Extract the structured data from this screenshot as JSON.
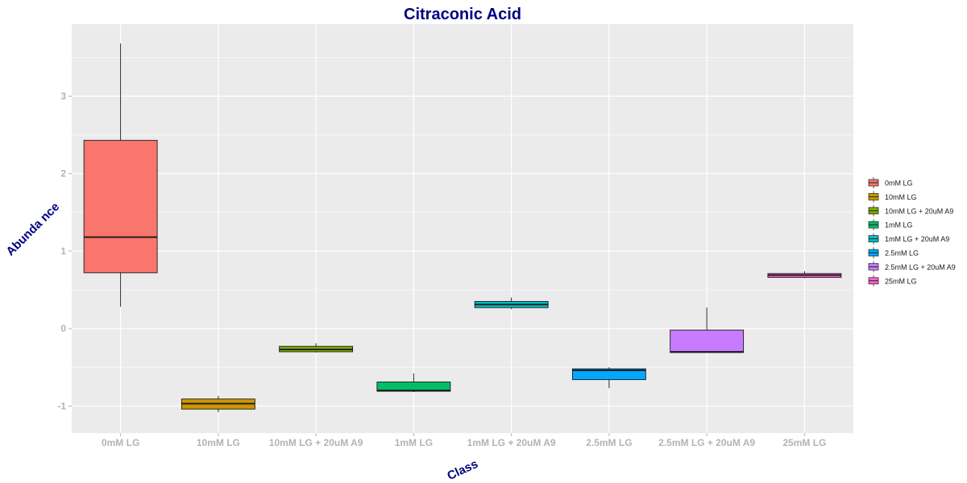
{
  "chart_data": {
    "type": "boxplot",
    "title": "Citraconic Acid",
    "xlabel": "Class",
    "ylabel": "Abunda nce",
    "categories": [
      "0mM LG",
      "10mM LG",
      "10mM LG + 20uM A9",
      "1mM LG",
      "1mM LG + 20uM A9",
      "2.5mM LG",
      "2.5mM LG + 20uM A9",
      "25mM LG"
    ],
    "yticks": [
      -1,
      0,
      1,
      2,
      3
    ],
    "ylim": [
      -1.35,
      3.93
    ],
    "grid": true,
    "legend_position": "right",
    "series": [
      {
        "name": "0mM LG",
        "color": "#F8766D",
        "whisker_low": 0.28,
        "q1": 0.72,
        "median": 1.18,
        "q3": 2.43,
        "whisker_high": 3.68
      },
      {
        "name": "10mM LG",
        "color": "#CD9600",
        "whisker_low": -1.08,
        "q1": -1.04,
        "median": -0.97,
        "q3": -0.91,
        "whisker_high": -0.87
      },
      {
        "name": "10mM LG + 20uM A9",
        "color": "#7CAE00",
        "whisker_low": -0.31,
        "q1": -0.3,
        "median": -0.27,
        "q3": -0.23,
        "whisker_high": -0.19
      },
      {
        "name": "1mM LG",
        "color": "#00BE67",
        "whisker_low": -0.82,
        "q1": -0.81,
        "median": -0.8,
        "q3": -0.69,
        "whisker_high": -0.58
      },
      {
        "name": "1mM LG + 20uM A9",
        "color": "#00BFC4",
        "whisker_low": 0.25,
        "q1": 0.27,
        "median": 0.31,
        "q3": 0.35,
        "whisker_high": 0.4
      },
      {
        "name": "2.5mM LG",
        "color": "#00A9FF",
        "whisker_low": -0.77,
        "q1": -0.66,
        "median": -0.54,
        "q3": -0.52,
        "whisker_high": -0.5
      },
      {
        "name": "2.5mM LG + 20uM A9",
        "color": "#C77CFF",
        "whisker_low": -0.31,
        "q1": -0.31,
        "median": -0.3,
        "q3": -0.02,
        "whisker_high": 0.27
      },
      {
        "name": "25mM LG",
        "color": "#FF61CC",
        "whisker_low": 0.65,
        "q1": 0.66,
        "median": 0.69,
        "q3": 0.71,
        "whisker_high": 0.74
      }
    ]
  }
}
